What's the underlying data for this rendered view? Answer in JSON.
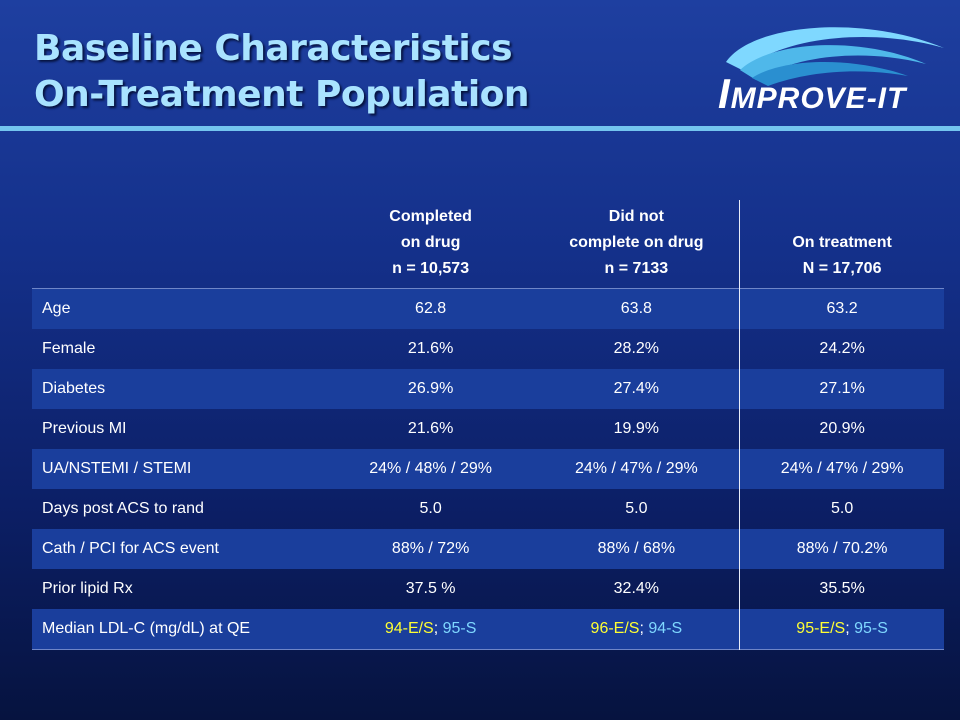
{
  "title": {
    "line1": "Baseline Characteristics",
    "line2": "On-Treatment Population"
  },
  "logo": {
    "text_first": "I",
    "text_rest": "MPROVE-IT"
  },
  "table": {
    "headers": [
      "",
      "Completed\non drug\nn = 10,573",
      "Did not\ncomplete on drug\nn = 7133",
      "On treatment\nN = 17,706"
    ],
    "rows": [
      {
        "label": "Age",
        "values": [
          "62.8",
          "63.8",
          "63.2"
        ]
      },
      {
        "label": "Female",
        "values": [
          "21.6%",
          "28.2%",
          "24.2%"
        ]
      },
      {
        "label": "Diabetes",
        "values": [
          "26.9%",
          "27.4%",
          "27.1%"
        ]
      },
      {
        "label": "Previous MI",
        "values": [
          "21.6%",
          "19.9%",
          "20.9%"
        ]
      },
      {
        "label": "UA/NSTEMI / STEMI",
        "values": [
          "24% / 48% / 29%",
          "24% / 47% / 29%",
          "24% / 47% / 29%"
        ]
      },
      {
        "label": "Days post ACS to rand",
        "values": [
          "5.0",
          "5.0",
          "5.0"
        ]
      },
      {
        "label": "Cath / PCI for ACS event",
        "values": [
          "88% / 72%",
          "88% / 68%",
          "88% / 70.2%"
        ]
      },
      {
        "label": "Prior lipid Rx",
        "values": [
          "37.5 %",
          "32.4%",
          "35.5%"
        ]
      }
    ],
    "ldl_row": {
      "label": "Median LDL-C (mg/dL) at QE",
      "cells": [
        {
          "es": "94-E/S",
          "sep": "; ",
          "s": "95-S"
        },
        {
          "es": "96-E/S",
          "sep": "; ",
          "s": "94-S"
        },
        {
          "es": "95-E/S",
          "sep": "; ",
          "s": "95-S"
        }
      ]
    }
  },
  "colors": {
    "background_top": "#1e3fa0",
    "background_bottom": "#06133f",
    "title": "#a9e3ff",
    "rule": "#74c5ef",
    "stripe": "#1a3e9c",
    "ezetimibe_simva_value": "#ffff33",
    "simva_value": "#7fd8ff"
  }
}
